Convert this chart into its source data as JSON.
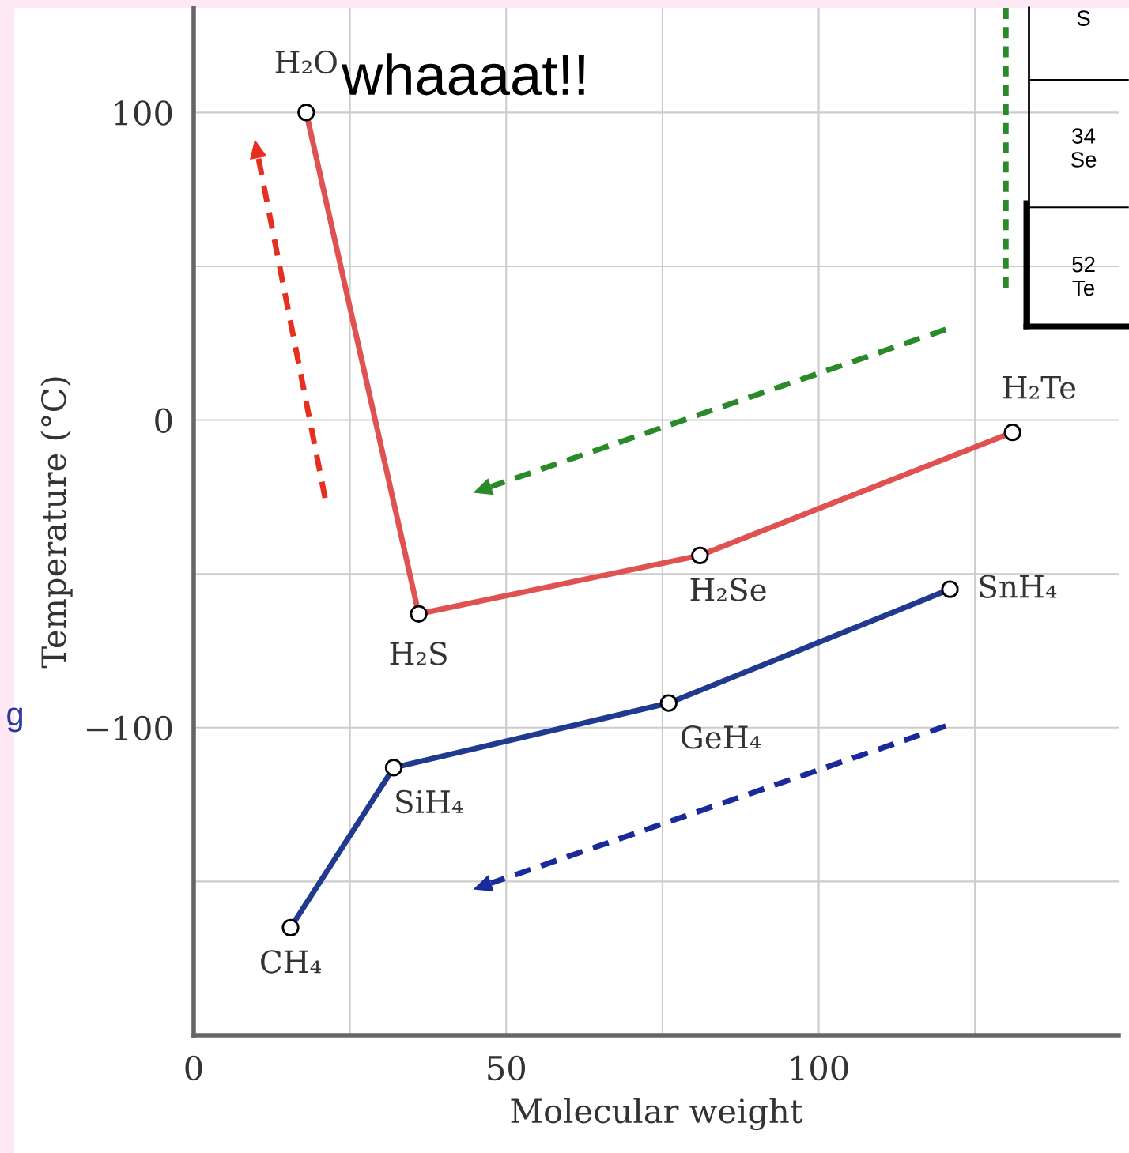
{
  "chart_data": {
    "type": "line",
    "xlabel": "Molecular weight",
    "ylabel": "Temperature (°C)",
    "series": [
      {
        "color": "#e05252",
        "x": [
          18,
          36,
          81,
          131
        ],
        "values": [
          100,
          -63,
          -44,
          -4
        ]
      },
      {
        "color": "#1f3a8f",
        "x": [
          15.5,
          32,
          76,
          121
        ],
        "values": [
          -165,
          -113,
          -92,
          -55
        ]
      }
    ],
    "marker": "circle",
    "line_style": "solid",
    "grid": true,
    "legend": false,
    "xlim": [
      0,
      148
    ],
    "ylim": [
      -200,
      134
    ],
    "xticks": [
      0,
      {
        "value": 25,
        "label": null
      },
      50,
      {
        "value": 75,
        "label": null
      },
      100,
      {
        "value": 125,
        "label": null
      }
    ],
    "yticks": [
      {
        "value": -150,
        "label": null
      },
      -100,
      {
        "value": -50,
        "label": null
      },
      0,
      {
        "value": 50,
        "label": null
      },
      100
    ],
    "annotations": [
      {
        "text": "H₂O",
        "x": 18,
        "y": 100
      },
      {
        "text": "H₂S",
        "x": 36,
        "y": -63
      },
      {
        "text": "H₂Se",
        "x": 81,
        "y": -44
      },
      {
        "text": "H₂Te",
        "x": 131,
        "y": -4
      },
      {
        "text": "CH₄",
        "x": 15.5,
        "y": -165
      },
      {
        "text": "SiH₄",
        "x": 32,
        "y": -113
      },
      {
        "text": "GeH₄",
        "x": 76,
        "y": -92
      },
      {
        "text": "SnH₄",
        "x": 121,
        "y": -55
      },
      "whaaaat!!",
      "S",
      "34\nSe",
      "52\nTe",
      "g"
    ]
  }
}
